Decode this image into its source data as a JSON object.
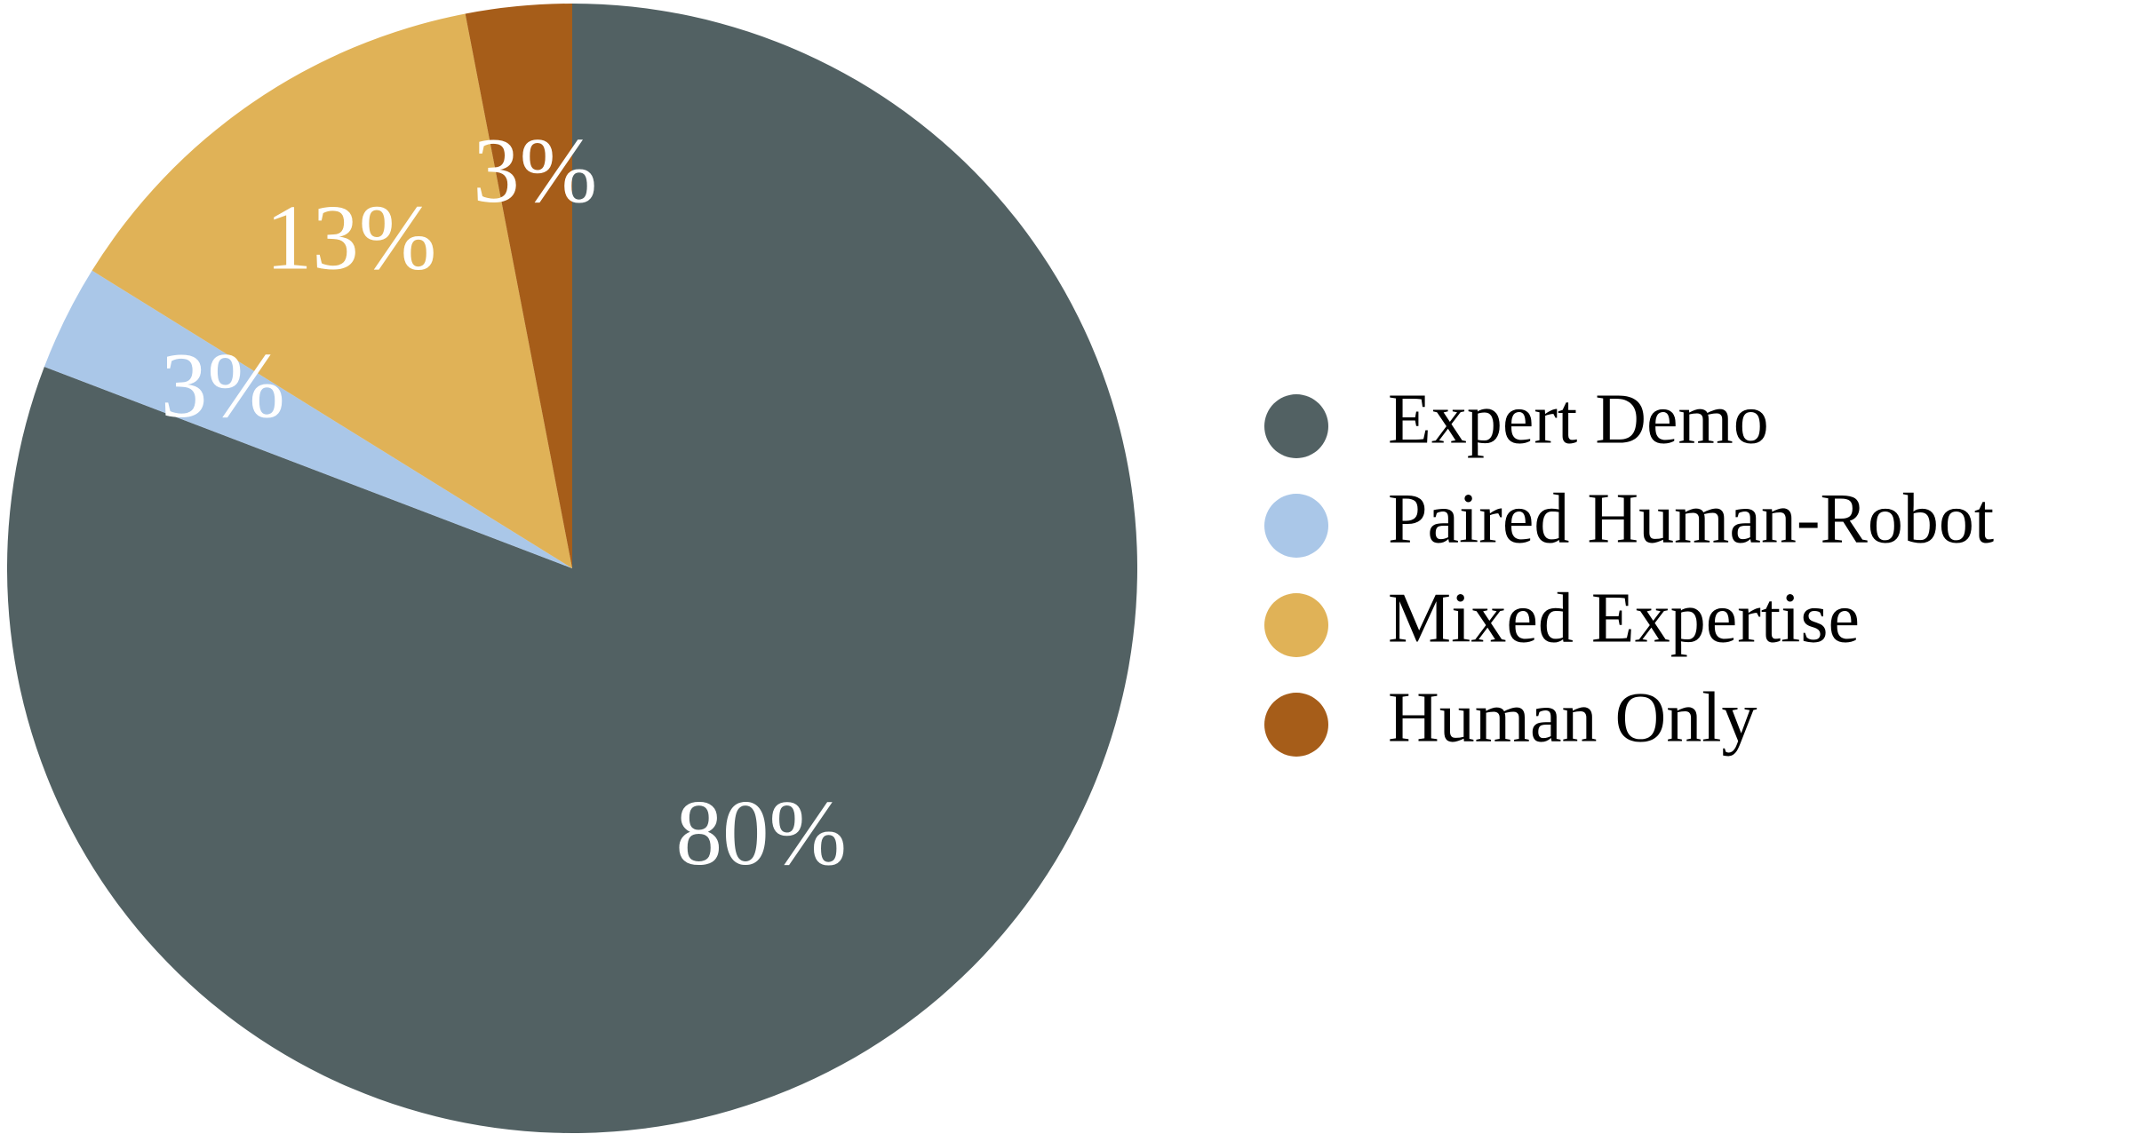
{
  "chart_data": {
    "type": "pie",
    "categories": [
      "Expert Demo",
      "Paired Human-Robot",
      "Mixed Expertise",
      "Human Only"
    ],
    "values": [
      80,
      3,
      13,
      3
    ],
    "value_labels": [
      "80%",
      "3%",
      "13%",
      "3%"
    ],
    "colors": [
      "#526163",
      "#aac7e8",
      "#e0b257",
      "#a65d19"
    ],
    "legend": "right"
  }
}
